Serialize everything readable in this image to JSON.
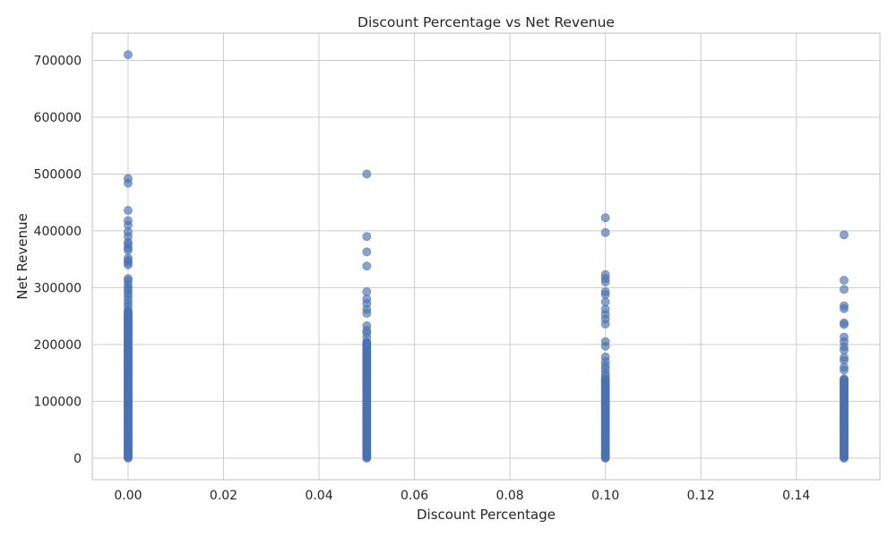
{
  "chart_data": {
    "type": "scatter",
    "title": "Discount Percentage vs Net Revenue",
    "xlabel": "Discount Percentage",
    "ylabel": "Net Revenue",
    "xlim": [
      -0.0075,
      0.1575
    ],
    "ylim": [
      -38000,
      748000
    ],
    "x_ticks": [
      0.0,
      0.02,
      0.04,
      0.06,
      0.08,
      0.1,
      0.12,
      0.14
    ],
    "x_tick_labels": [
      "0.00",
      "0.02",
      "0.04",
      "0.06",
      "0.08",
      "0.10",
      "0.12",
      "0.14"
    ],
    "y_ticks": [
      0,
      100000,
      200000,
      300000,
      400000,
      500000,
      600000,
      700000
    ],
    "y_tick_labels": [
      "0",
      "100000",
      "200000",
      "300000",
      "400000",
      "500000",
      "600000",
      "700000"
    ],
    "grid": true,
    "legend": false,
    "marker_color": "#4c72b0",
    "groups": [
      {
        "x": 0.0,
        "dense_range": [
          0,
          260000
        ],
        "points": [
          710000,
          492000,
          484000,
          436000,
          418000,
          410000,
          398000,
          390000,
          380000,
          376000,
          370000,
          366000,
          352000,
          348000,
          344000,
          340000,
          316000,
          312000,
          306000,
          300000,
          296000,
          290000,
          285000,
          278000,
          272000,
          266000
        ]
      },
      {
        "x": 0.05,
        "dense_range": [
          0,
          205000
        ],
        "points": [
          500000,
          390000,
          363000,
          338000,
          293000,
          280000,
          272000,
          262000,
          255000,
          233000,
          225000,
          220000,
          212000
        ]
      },
      {
        "x": 0.1,
        "dense_range": [
          0,
          140000
        ],
        "points": [
          423000,
          397000,
          323000,
          316000,
          310000,
          293000,
          288000,
          275000,
          262000,
          253000,
          245000,
          236000,
          205000,
          197000,
          178000,
          170000,
          163000,
          157000,
          150000,
          145000
        ]
      },
      {
        "x": 0.15,
        "dense_range": [
          0,
          140000
        ],
        "points": [
          393000,
          313000,
          297000,
          268000,
          263000,
          238000,
          235000,
          213000,
          205000,
          196000,
          190000,
          177000,
          172000,
          160000,
          155000
        ]
      }
    ]
  }
}
